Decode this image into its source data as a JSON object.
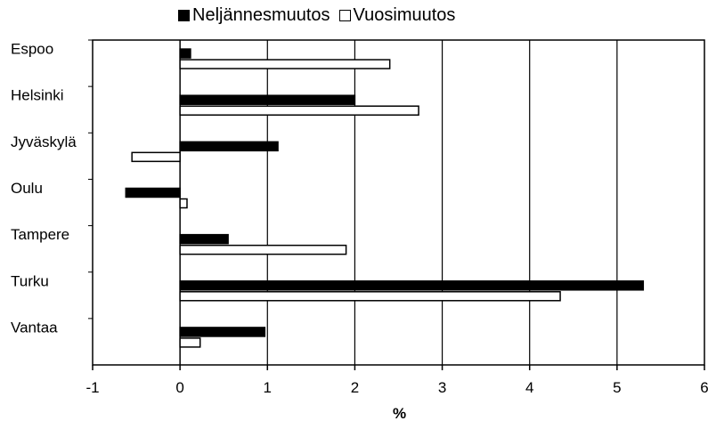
{
  "chart_data": {
    "type": "bar",
    "orientation": "horizontal",
    "title": "",
    "xlabel": "%",
    "ylabel": "",
    "xlim": [
      -1,
      6
    ],
    "xticks": [
      "-1",
      "0",
      "1",
      "2",
      "3",
      "4",
      "5",
      "6"
    ],
    "grid": "vertical",
    "legend_position": "top",
    "categories": [
      "Espoo",
      "Helsinki",
      "Jyväskylä",
      "Oulu",
      "Tampere",
      "Turku",
      "Vantaa"
    ],
    "series": [
      {
        "name": "Neljännesmuutos",
        "color": "#000000",
        "values": [
          0.12,
          2.0,
          1.12,
          -0.62,
          0.55,
          5.3,
          0.97
        ]
      },
      {
        "name": "Vuosimuutos",
        "color": "#ffffff",
        "values": [
          2.4,
          2.73,
          -0.55,
          0.08,
          1.9,
          4.35,
          0.23
        ]
      }
    ]
  }
}
